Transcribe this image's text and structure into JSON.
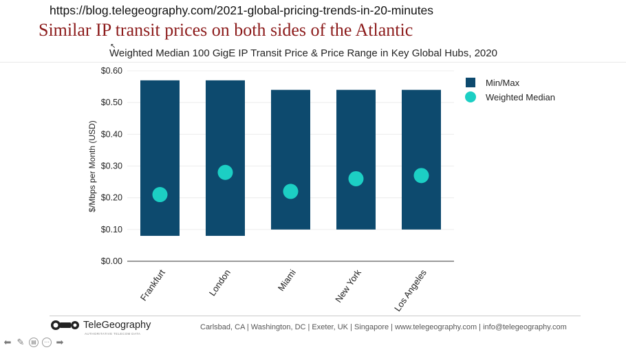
{
  "header": {
    "url": "https://blog.telegeography.com/2021-global-pricing-trends-in-20-minutes",
    "headline": "Similar IP transit prices on both sides of the Atlantic"
  },
  "chart_data": {
    "type": "bar",
    "title": "Weighted Median 100 GigE IP Transit Price & Price Range in Key Global Hubs, 2020",
    "ylabel": "$/Mbps per Month (USD)",
    "xlabel": "",
    "ylim": [
      0,
      0.6
    ],
    "yticks": [
      "$0.00",
      "$0.10",
      "$0.20",
      "$0.30",
      "$0.40",
      "$0.50",
      "$0.60"
    ],
    "grid": true,
    "legend_position": "top-right",
    "categories": [
      "Frankfurt",
      "London",
      "Miami",
      "New York",
      "Los Angeles"
    ],
    "series": [
      {
        "name": "Min/Max",
        "type": "floating-bar",
        "color": "#0d4a6e",
        "min": [
          0.08,
          0.08,
          0.1,
          0.1,
          0.1
        ],
        "max": [
          0.57,
          0.57,
          0.54,
          0.54,
          0.54
        ]
      },
      {
        "name": "Weighted Median",
        "type": "scatter",
        "color": "#1ccfc4",
        "values": [
          0.21,
          0.28,
          0.22,
          0.26,
          0.27
        ]
      }
    ]
  },
  "footer": {
    "brand": "TeleGeography",
    "tagline": "AUTHORITATIVE TELECOM DATA",
    "info": "Carlsbad, CA | Washington, DC | Exeter, UK | Singapore | www.telegeography.com | info@telegeography.com"
  },
  "nav": {
    "icons": [
      "arrow-left-icon",
      "pen-icon",
      "slides-icon",
      "more-icon",
      "arrow-right-icon"
    ]
  }
}
